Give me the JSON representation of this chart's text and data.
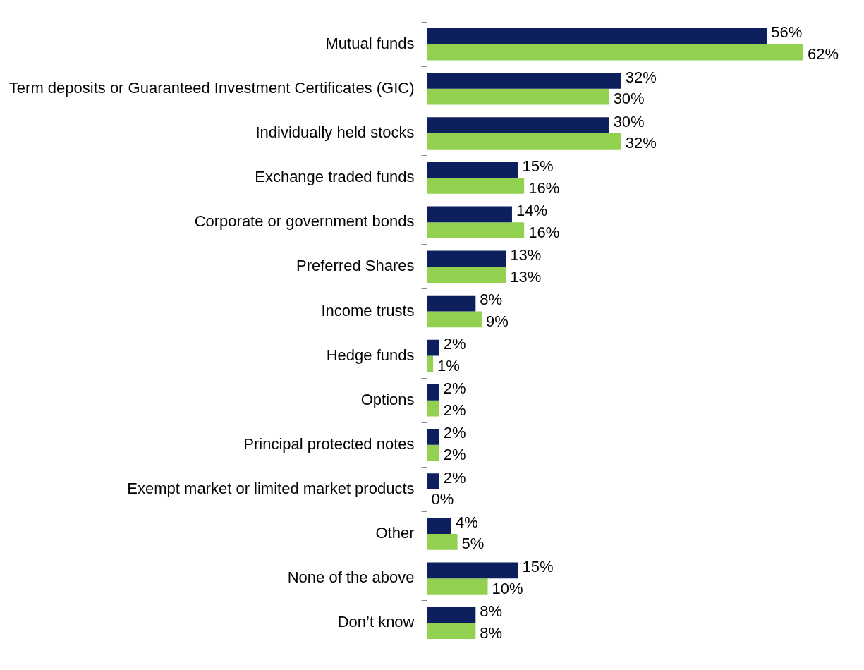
{
  "chart_data": {
    "type": "bar",
    "orientation": "horizontal",
    "categories": [
      "Mutual funds",
      "Term deposits or Guaranteed Investment Certificates (GIC)",
      "Individually held stocks",
      "Exchange traded funds",
      "Corporate or government bonds",
      "Preferred Shares",
      "Income trusts",
      "Hedge funds",
      "Options",
      "Principal protected notes",
      "Exempt market or limited market products",
      "Other",
      "None of the above",
      "Don’t know"
    ],
    "series": [
      {
        "color": "#0d1f5c",
        "values": [
          56,
          32,
          30,
          15,
          14,
          13,
          8,
          2,
          2,
          2,
          2,
          4,
          15,
          8
        ],
        "value_labels": [
          "56%",
          "32%",
          "30%",
          "15%",
          "14%",
          "13%",
          "8%",
          "2%",
          "2%",
          "2%",
          "2%",
          "4%",
          "15%",
          "8%"
        ]
      },
      {
        "color": "#92d050",
        "values": [
          62,
          30,
          32,
          16,
          16,
          13,
          9,
          1,
          2,
          2,
          0,
          5,
          10,
          8
        ],
        "value_labels": [
          "62%",
          "30%",
          "32%",
          "16%",
          "16%",
          "13%",
          "9%",
          "1%",
          "2%",
          "2%",
          "0%",
          "5%",
          "10%",
          "8%"
        ]
      }
    ],
    "legend": false
  }
}
